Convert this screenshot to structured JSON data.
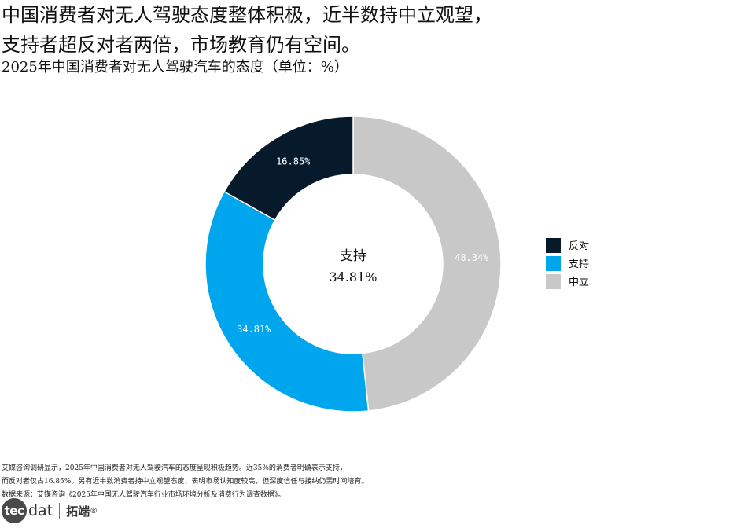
{
  "headline": {
    "line1": "中国消费者对无人驾驶态度整体积极，近半数持中立观望，",
    "line2": "支持者超反对者两倍，市场教育仍有空间。"
  },
  "chart_data": {
    "type": "pie",
    "title": "2025年中国消费者对无人驾驶汽车的态度（单位：%）",
    "donut": true,
    "legend_position": "right",
    "center_label": {
      "title": "支持",
      "value": "34.81%"
    },
    "slices": [
      {
        "name": "反对",
        "value": 16.85,
        "label": "16.85%",
        "color": "#071a2c",
        "label_color": "#ffffff"
      },
      {
        "name": "支持",
        "value": 34.81,
        "label": "34.81%",
        "color": "#00a6ed",
        "label_color": "#ffffff"
      },
      {
        "name": "中立",
        "value": 48.34,
        "label": "48.34%",
        "color": "#c8c8c8",
        "label_color": "#ffffff"
      }
    ]
  },
  "notes": {
    "line1": "艾媒咨询调研显示，2025年中国消费者对无人驾驶汽车的态度呈现积极趋势。近35%的消费者明确表示支持，",
    "line2": "而反对者仅占16.85%。另有近半数消费者持中立观望态度，表明市场认知度较高，但深度信任与接纳仍需时间培育。",
    "line3": "数据来源：艾媒咨询《2025年中国无人驾驶汽车行业市场环境分析及消费行为调查数据》。"
  },
  "brand": {
    "logo_mark": "tec",
    "logo_word": "dat",
    "logo_cn": "拓端",
    "logo_reg": "®"
  }
}
